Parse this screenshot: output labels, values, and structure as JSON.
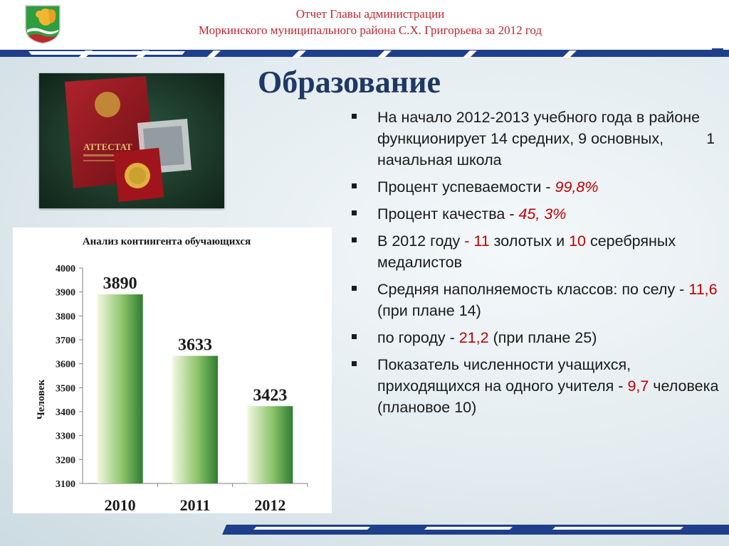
{
  "header": {
    "line1": "Отчет  Главы администрации",
    "line2": "Моркинского муниципального района С.Х. Григорьева за 2012 год"
  },
  "page_title": "Образование",
  "photo": {
    "icon": "attestat-certificate-photo",
    "attestat_label": "АТТЕСТАТ"
  },
  "bullets": [
    {
      "parts": [
        {
          "text": "На начало 2012-2013 учебного года в районе функционирует 14 средних, 9 основных,",
          "style": "normal"
        },
        {
          "text": "",
          "style": "gap"
        },
        {
          "text": "1 начальная школа",
          "style": "normal"
        }
      ]
    },
    {
      "parts": [
        {
          "text": "Процент успеваемости - ",
          "style": "normal"
        },
        {
          "text": "99,8%",
          "style": "red-i"
        }
      ]
    },
    {
      "parts": [
        {
          "text": "Процент качества - ",
          "style": "normal"
        },
        {
          "text": "45, 3%",
          "style": "red-i"
        }
      ]
    },
    {
      "parts": [
        {
          "text": "В 2012 году  ",
          "style": "normal"
        },
        {
          "text": "- 11",
          "style": "red"
        },
        {
          "text": " золотых и ",
          "style": "normal"
        },
        {
          "text": "10",
          "style": "red"
        },
        {
          "text": " серебряных медалистов",
          "style": "normal"
        }
      ]
    },
    {
      "parts": [
        {
          "text": "Средняя наполняемость классов: по селу - ",
          "style": "normal"
        },
        {
          "text": "11,6",
          "style": "red"
        },
        {
          "text": " (при плане 14)",
          "style": "normal"
        }
      ]
    },
    {
      "parts": [
        {
          "text": "по городу - ",
          "style": "normal"
        },
        {
          "text": "21,2",
          "style": "red"
        },
        {
          "text": " (при плане 25)",
          "style": "normal"
        }
      ]
    },
    {
      "parts": [
        {
          "text": "Показатель численности учащихся, приходящихся на одного учителя - ",
          "style": "normal"
        },
        {
          "text": "9,7",
          "style": "red"
        },
        {
          "text": " человека (плановое 10)",
          "style": "normal"
        }
      ]
    }
  ],
  "colors": {
    "header_red": "#c0272d",
    "title_blue": "#1f3864",
    "highlight_red": "#c00000",
    "bar_green_dark": "#2e7d32",
    "bar_green_light": "#f2f8e2"
  },
  "chart_data": {
    "type": "bar",
    "title": "Анализ контингента обучающихся",
    "xlabel": "",
    "ylabel": "Человек",
    "categories": [
      "2010",
      "2011",
      "2012"
    ],
    "values": [
      3890,
      3633,
      3423
    ],
    "data_labels": [
      "3890",
      "3633",
      "3423"
    ],
    "ylim": [
      3100,
      4000
    ],
    "yticks": [
      3100,
      3200,
      3300,
      3400,
      3500,
      3600,
      3700,
      3800,
      3900,
      4000
    ],
    "grid": false,
    "legend": "none"
  }
}
